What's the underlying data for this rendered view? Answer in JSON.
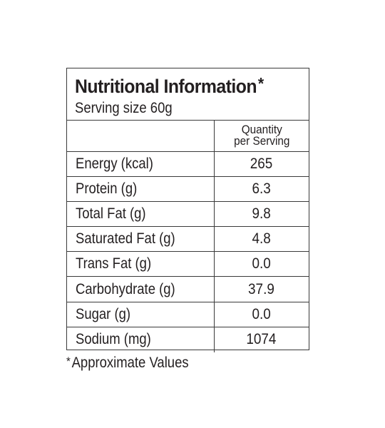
{
  "label": {
    "title": "Nutritional Information",
    "title_marker": "*",
    "serving_size": "Serving size 60g",
    "column_header_line1": "Quantity",
    "column_header_line2": "per Serving",
    "rows": [
      {
        "nutrient": "Energy (kcal)",
        "value": "265"
      },
      {
        "nutrient": "Protein (g)",
        "value": "6.3"
      },
      {
        "nutrient": "Total Fat (g)",
        "value": "9.8"
      },
      {
        "nutrient": "Saturated Fat (g)",
        "value": "4.8"
      },
      {
        "nutrient": "Trans Fat (g)",
        "value": "0.0"
      },
      {
        "nutrient": "Carbohydrate (g)",
        "value": "37.9"
      },
      {
        "nutrient": "Sugar (g)",
        "value": "0.0"
      },
      {
        "nutrient": "Sodium (mg)",
        "value": "1074"
      }
    ],
    "footnote_marker": "*",
    "footnote": "Approximate Values"
  }
}
